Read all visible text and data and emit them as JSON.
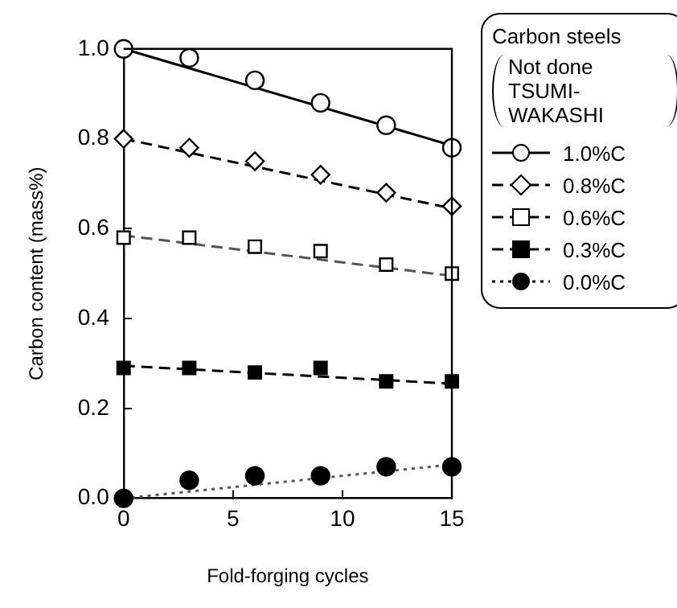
{
  "chart_data": {
    "type": "scatter",
    "xlabel": "Fold-forging cycles",
    "ylabel": "Carbon content (mass%)",
    "legend_title": "Carbon steels",
    "annotations": [
      "Not done TSUMI-WAKASHI"
    ],
    "legend": "top right",
    "grid": false,
    "xlim": [
      0,
      15
    ],
    "xticks": [
      0,
      5,
      10,
      15
    ],
    "ylim": [
      0,
      1.0
    ],
    "yticks": [
      {
        "value": 0,
        "label": "0.0"
      },
      {
        "value": 0.2,
        "label": "0.2"
      },
      {
        "value": 0.4,
        "label": "0.4"
      },
      {
        "value": 0.6,
        "label": "0.6"
      },
      {
        "value": 0.8,
        "label": "0.8"
      },
      {
        "value": 1.0,
        "label": "1.0"
      }
    ],
    "series": [
      {
        "name": "1.0%C",
        "color": "#ffffff",
        "marker": "circle",
        "line_style": "solid",
        "x": [
          0,
          3,
          6,
          9,
          12,
          15
        ],
        "values": [
          1.0,
          0.98,
          0.93,
          0.88,
          0.83,
          0.78
        ]
      },
      {
        "name": "0.8%C",
        "color": "#ffffff",
        "marker": "diamond",
        "line_style": "dashed",
        "x": [
          0,
          3,
          6,
          9,
          12,
          15
        ],
        "values": [
          0.8,
          0.78,
          0.75,
          0.72,
          0.68,
          0.65
        ]
      },
      {
        "name": "0.6%C",
        "color": "#ffffff",
        "marker": "square",
        "line_style": "dashed",
        "x": [
          0,
          3,
          6,
          9,
          12,
          15
        ],
        "values": [
          0.58,
          0.58,
          0.56,
          0.55,
          0.52,
          0.5
        ]
      },
      {
        "name": "0.3%C",
        "color": "#000000",
        "marker": "square",
        "line_style": "dashed",
        "x": [
          0,
          3,
          6,
          9,
          12,
          15
        ],
        "values": [
          0.29,
          0.29,
          0.28,
          0.29,
          0.26,
          0.26
        ]
      },
      {
        "name": "0.0%C",
        "color": "#000000",
        "marker": "circle",
        "line_style": "dotted",
        "x": [
          0,
          3,
          6,
          9,
          12,
          15
        ],
        "values": [
          0.0,
          0.04,
          0.05,
          0.05,
          0.07,
          0.07
        ]
      },
      {
        "type": "line",
        "color": "#000000",
        "line_style": "solid",
        "marker": "none",
        "x": [
          0,
          15
        ],
        "values": [
          1.0,
          0.785
        ]
      },
      {
        "type": "line",
        "color": "#000000",
        "line_style": "dashed",
        "marker": "none",
        "x": [
          0,
          15
        ],
        "values": [
          0.8,
          0.645
        ]
      },
      {
        "type": "line",
        "color": "#555555",
        "line_style": "dashed",
        "marker": "none",
        "x": [
          0,
          15
        ],
        "values": [
          0.585,
          0.495
        ]
      },
      {
        "type": "line",
        "color": "#000000",
        "line_style": "dashed",
        "marker": "none",
        "x": [
          0,
          15
        ],
        "values": [
          0.295,
          0.255
        ]
      },
      {
        "type": "line",
        "color": "#555555",
        "line_style": "dotted",
        "marker": "none",
        "x": [
          0,
          15
        ],
        "values": [
          0.0,
          0.075
        ]
      }
    ]
  }
}
